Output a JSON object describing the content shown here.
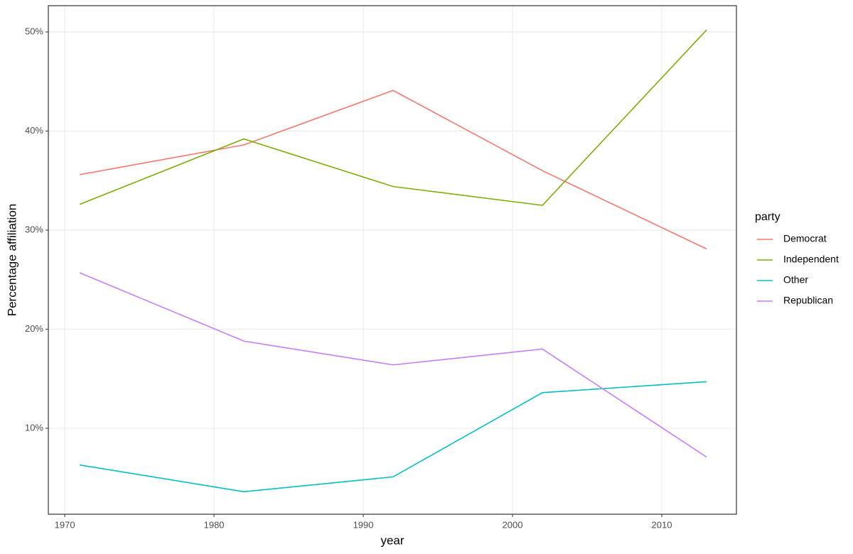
{
  "chart_data": {
    "type": "line",
    "x_label": "year",
    "y_label": "Percentage affiliation",
    "legend_title": "party",
    "x": [
      1971,
      1982,
      1992,
      2002,
      2013
    ],
    "series": [
      {
        "name": "Democrat",
        "color": "#F8766D",
        "values": [
          35.6,
          38.6,
          44.1,
          36.0,
          28.1
        ]
      },
      {
        "name": "Independent",
        "color": "#7CAE00",
        "values": [
          32.6,
          39.2,
          34.4,
          32.5,
          50.2
        ]
      },
      {
        "name": "Other",
        "color": "#00BFC4",
        "values": [
          6.3,
          3.6,
          5.1,
          13.6,
          14.7
        ]
      },
      {
        "name": "Republican",
        "color": "#C77CFF",
        "values": [
          25.7,
          18.8,
          16.4,
          18.0,
          7.1
        ]
      }
    ],
    "xlim": [
      1968.9,
      2015
    ],
    "ylim": [
      1.33,
      52.65
    ],
    "xticks": [
      1970,
      1980,
      1990,
      2000,
      2010
    ],
    "yticks": [
      {
        "value": 10,
        "label": "10%"
      },
      {
        "value": 20,
        "label": "20%"
      },
      {
        "value": 30,
        "label": "30%"
      },
      {
        "value": 40,
        "label": "40%"
      },
      {
        "value": 50,
        "label": "50%"
      }
    ],
    "grid": true,
    "legend": "right"
  }
}
